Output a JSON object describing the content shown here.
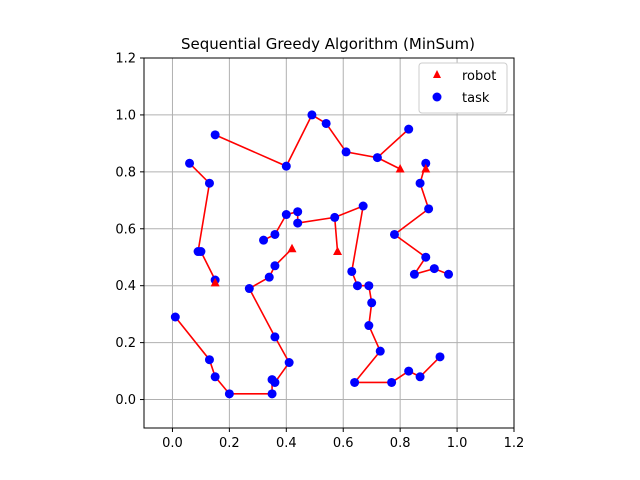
{
  "chart_data": {
    "type": "scatter",
    "title": "Sequential Greedy Algorithm (MinSum)",
    "xlabel": "",
    "ylabel": "",
    "xlim": [
      -0.1,
      1.2
    ],
    "ylim": [
      -0.1,
      1.2
    ],
    "xticks": [
      "0.0",
      "0.2",
      "0.4",
      "0.6",
      "0.8",
      "1.0",
      "1.2"
    ],
    "yticks": [
      "0.0",
      "0.2",
      "0.4",
      "0.6",
      "0.8",
      "1.0",
      "1.2"
    ],
    "grid": true,
    "legend_position": "top-right",
    "legend": [
      {
        "label": "robot",
        "marker": "triangle",
        "color": "#ff0000"
      },
      {
        "label": "task",
        "marker": "circle",
        "color": "#0000ff"
      }
    ],
    "robots": [
      {
        "x": 0.15,
        "y": 0.41
      },
      {
        "x": 0.42,
        "y": 0.53
      },
      {
        "x": 0.58,
        "y": 0.52
      },
      {
        "x": 0.8,
        "y": 0.81
      },
      {
        "x": 0.89,
        "y": 0.81
      }
    ],
    "tasks": [
      {
        "x": 0.15,
        "y": 0.42
      },
      {
        "x": 0.1,
        "y": 0.52
      },
      {
        "x": 0.09,
        "y": 0.52
      },
      {
        "x": 0.13,
        "y": 0.76
      },
      {
        "x": 0.06,
        "y": 0.83
      },
      {
        "x": 0.36,
        "y": 0.47
      },
      {
        "x": 0.34,
        "y": 0.43
      },
      {
        "x": 0.27,
        "y": 0.39
      },
      {
        "x": 0.36,
        "y": 0.22
      },
      {
        "x": 0.41,
        "y": 0.13
      },
      {
        "x": 0.36,
        "y": 0.06
      },
      {
        "x": 0.35,
        "y": 0.07
      },
      {
        "x": 0.35,
        "y": 0.02
      },
      {
        "x": 0.2,
        "y": 0.02
      },
      {
        "x": 0.15,
        "y": 0.08
      },
      {
        "x": 0.13,
        "y": 0.14
      },
      {
        "x": 0.01,
        "y": 0.29
      },
      {
        "x": 0.36,
        "y": 0.58
      },
      {
        "x": 0.32,
        "y": 0.56
      },
      {
        "x": 0.4,
        "y": 0.65
      },
      {
        "x": 0.44,
        "y": 0.66
      },
      {
        "x": 0.44,
        "y": 0.62
      },
      {
        "x": 0.57,
        "y": 0.64
      },
      {
        "x": 0.67,
        "y": 0.68
      },
      {
        "x": 0.63,
        "y": 0.45
      },
      {
        "x": 0.65,
        "y": 0.4
      },
      {
        "x": 0.69,
        "y": 0.4
      },
      {
        "x": 0.7,
        "y": 0.34
      },
      {
        "x": 0.69,
        "y": 0.26
      },
      {
        "x": 0.73,
        "y": 0.17
      },
      {
        "x": 0.64,
        "y": 0.06
      },
      {
        "x": 0.77,
        "y": 0.06
      },
      {
        "x": 0.83,
        "y": 0.1
      },
      {
        "x": 0.87,
        "y": 0.08
      },
      {
        "x": 0.94,
        "y": 0.15
      },
      {
        "x": 0.72,
        "y": 0.85
      },
      {
        "x": 0.83,
        "y": 0.95
      },
      {
        "x": 0.61,
        "y": 0.87
      },
      {
        "x": 0.54,
        "y": 0.97
      },
      {
        "x": 0.49,
        "y": 1.0
      },
      {
        "x": 0.4,
        "y": 0.82
      },
      {
        "x": 0.15,
        "y": 0.93
      },
      {
        "x": 0.87,
        "y": 0.76
      },
      {
        "x": 0.89,
        "y": 0.83
      },
      {
        "x": 0.9,
        "y": 0.67
      },
      {
        "x": 0.78,
        "y": 0.58
      },
      {
        "x": 0.89,
        "y": 0.5
      },
      {
        "x": 0.85,
        "y": 0.44
      },
      {
        "x": 0.92,
        "y": 0.46
      },
      {
        "x": 0.97,
        "y": 0.44
      }
    ],
    "routes": [
      {
        "robot": 0,
        "color": "#ff0000",
        "points": [
          [
            0.15,
            0.41
          ],
          [
            0.15,
            0.42
          ],
          [
            0.1,
            0.52
          ],
          [
            0.09,
            0.52
          ],
          [
            0.13,
            0.76
          ],
          [
            0.06,
            0.83
          ]
        ]
      },
      {
        "robot": 1,
        "color": "#ff0000",
        "points": [
          [
            0.42,
            0.53
          ],
          [
            0.36,
            0.47
          ],
          [
            0.34,
            0.43
          ],
          [
            0.27,
            0.39
          ],
          [
            0.36,
            0.22
          ],
          [
            0.41,
            0.13
          ],
          [
            0.36,
            0.06
          ],
          [
            0.35,
            0.07
          ],
          [
            0.35,
            0.02
          ],
          [
            0.2,
            0.02
          ],
          [
            0.15,
            0.08
          ],
          [
            0.13,
            0.14
          ],
          [
            0.01,
            0.29
          ]
        ]
      },
      {
        "robot": 2,
        "color": "#ff0000",
        "points": [
          [
            0.58,
            0.52
          ],
          [
            0.57,
            0.64
          ],
          [
            0.67,
            0.68
          ],
          [
            0.63,
            0.45
          ],
          [
            0.65,
            0.4
          ],
          [
            0.69,
            0.4
          ],
          [
            0.7,
            0.34
          ],
          [
            0.69,
            0.26
          ],
          [
            0.73,
            0.17
          ],
          [
            0.64,
            0.06
          ],
          [
            0.77,
            0.06
          ],
          [
            0.83,
            0.1
          ],
          [
            0.87,
            0.08
          ],
          [
            0.94,
            0.15
          ]
        ]
      },
      {
        "robot": 2,
        "color": "#ff0000",
        "points": [
          [
            0.57,
            0.64
          ],
          [
            0.44,
            0.62
          ],
          [
            0.44,
            0.66
          ],
          [
            0.4,
            0.65
          ],
          [
            0.36,
            0.58
          ],
          [
            0.32,
            0.56
          ]
        ]
      },
      {
        "robot": 3,
        "color": "#ff0000",
        "points": [
          [
            0.8,
            0.81
          ],
          [
            0.72,
            0.85
          ],
          [
            0.83,
            0.95
          ],
          [
            0.72,
            0.85
          ],
          [
            0.61,
            0.87
          ],
          [
            0.54,
            0.97
          ],
          [
            0.49,
            1.0
          ],
          [
            0.4,
            0.82
          ],
          [
            0.15,
            0.93
          ]
        ]
      },
      {
        "robot": 4,
        "color": "#ff0000",
        "points": [
          [
            0.89,
            0.81
          ],
          [
            0.89,
            0.83
          ],
          [
            0.87,
            0.76
          ],
          [
            0.9,
            0.67
          ],
          [
            0.78,
            0.58
          ],
          [
            0.89,
            0.5
          ],
          [
            0.85,
            0.44
          ],
          [
            0.92,
            0.46
          ],
          [
            0.97,
            0.44
          ]
        ]
      }
    ]
  }
}
